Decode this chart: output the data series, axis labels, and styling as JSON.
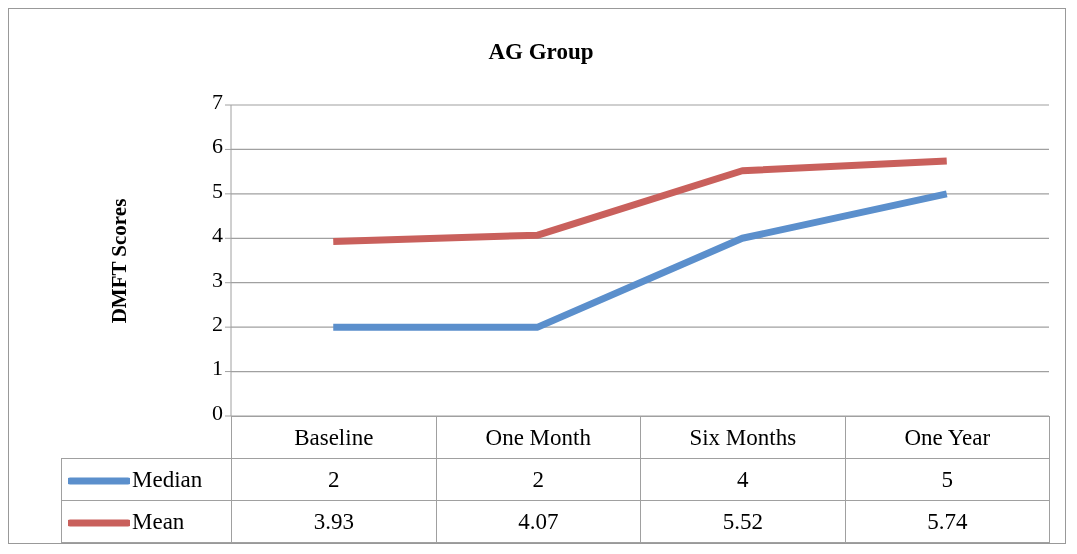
{
  "chart_data": {
    "type": "line",
    "title": "AG Group",
    "ylabel": "DMFT Scores",
    "categories": [
      "Baseline",
      "One Month",
      "Six Months",
      "One Year"
    ],
    "series": [
      {
        "name": "Median",
        "color": "#5b8fcc",
        "values": [
          2,
          2,
          4,
          5
        ]
      },
      {
        "name": "Mean",
        "color": "#c9605c",
        "values": [
          3.93,
          4.07,
          5.52,
          5.74
        ]
      }
    ],
    "ylim": [
      0,
      7
    ],
    "yticks": [
      0,
      1,
      2,
      3,
      4,
      5,
      6,
      7
    ],
    "grid": "y",
    "legend": "bottom",
    "data_labels": true,
    "marker": "none",
    "line_style": "solid"
  }
}
